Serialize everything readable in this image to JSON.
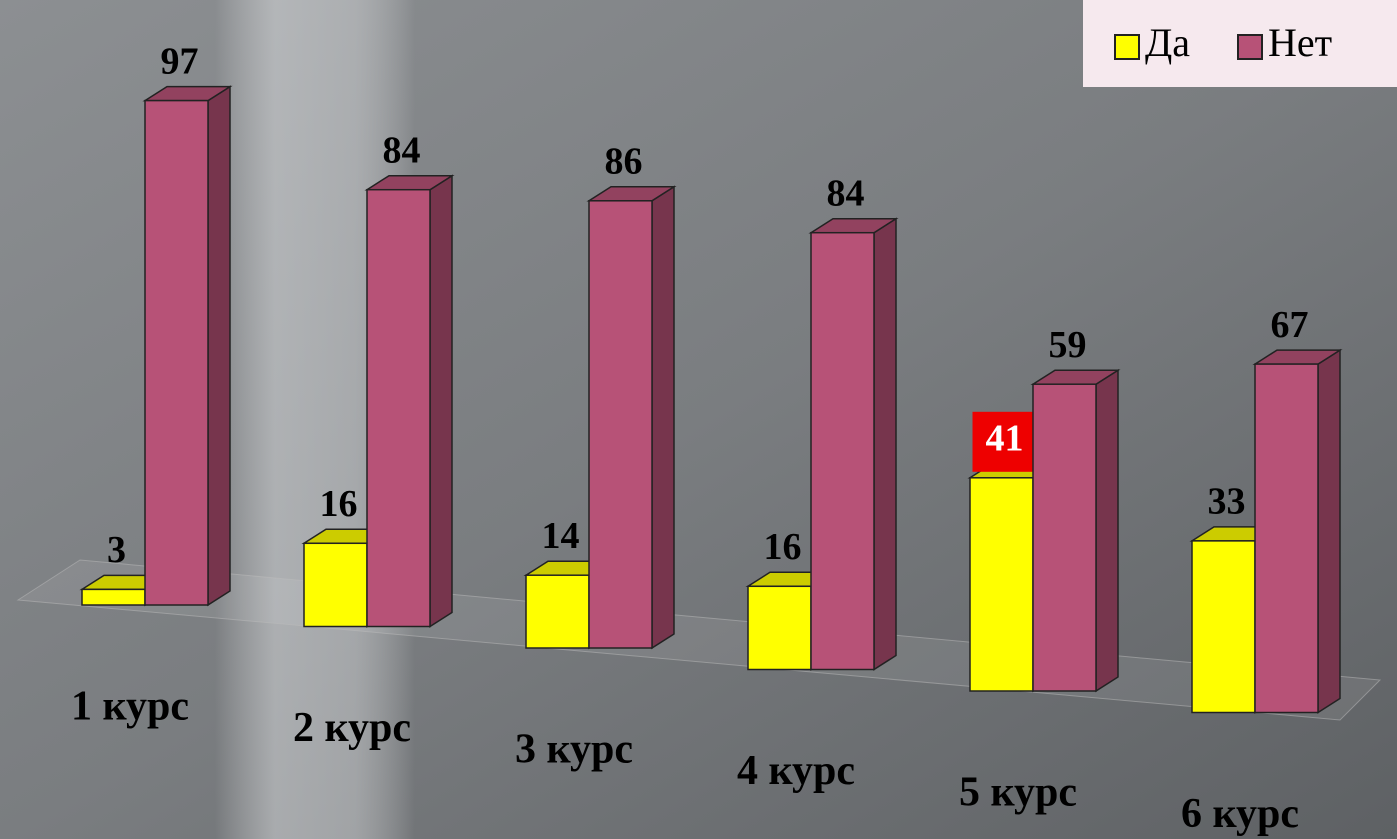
{
  "chart_data": {
    "type": "bar3d",
    "categories": [
      "1 курс",
      "2 курс",
      "3 курс",
      "4 курс",
      "5 курс",
      "6 курс"
    ],
    "series": [
      {
        "name": "Да",
        "color": "#ffff00",
        "values": [
          3,
          16,
          14,
          16,
          41,
          33
        ]
      },
      {
        "name": "Нет",
        "color": "#b75277",
        "values": [
          97,
          84,
          86,
          84,
          59,
          67
        ]
      }
    ],
    "legend": "top-right"
  }
}
